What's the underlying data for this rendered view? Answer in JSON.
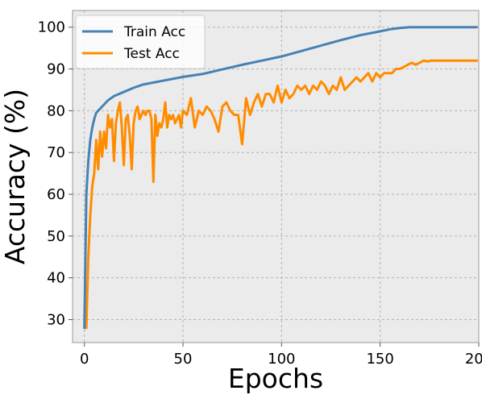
{
  "chart_data": {
    "type": "line",
    "title": "",
    "xlabel": "Epochs",
    "ylabel": "Accuracy (%)",
    "xlim": [
      -6,
      200
    ],
    "ylim": [
      24.5,
      104
    ],
    "xticks": [
      0,
      50,
      100,
      150,
      200
    ],
    "xtick_labels": [
      "0",
      "50",
      "100",
      "150",
      "200"
    ],
    "yticks": [
      30,
      40,
      50,
      60,
      70,
      80,
      90,
      100
    ],
    "ytick_labels": [
      "30",
      "40",
      "50",
      "60",
      "70",
      "80",
      "90",
      "100"
    ],
    "grid": true,
    "legend_position": "top-left",
    "series": [
      {
        "name": "Train Acc",
        "color": "#4682b4",
        "x": [
          0,
          1,
          2,
          3,
          4,
          5,
          6,
          7,
          8,
          10,
          12,
          15,
          20,
          25,
          30,
          40,
          50,
          60,
          70,
          80,
          90,
          100,
          110,
          120,
          130,
          140,
          150,
          155,
          160,
          165,
          170,
          180,
          190,
          199
        ],
        "values": [
          28,
          60,
          68,
          73,
          76,
          78,
          79.5,
          80,
          80.5,
          81.5,
          82.5,
          83.5,
          84.5,
          85.5,
          86.3,
          87.2,
          88.1,
          88.8,
          89.9,
          91,
          92,
          93,
          94.3,
          95.6,
          96.9,
          98.1,
          99,
          99.5,
          99.8,
          100,
          100,
          100,
          100,
          100
        ]
      },
      {
        "name": "Test Acc",
        "color": "#ff8c00",
        "x": [
          0,
          1,
          2,
          3,
          4,
          5,
          6,
          7,
          8,
          9,
          10,
          11,
          12,
          13,
          14,
          15,
          16,
          17,
          18,
          19,
          20,
          21,
          22,
          23,
          24,
          25,
          26,
          27,
          28,
          29,
          30,
          31,
          32,
          33,
          34,
          35,
          36,
          37,
          38,
          39,
          40,
          41,
          42,
          43,
          44,
          45,
          46,
          47,
          48,
          49,
          50,
          52,
          54,
          56,
          58,
          60,
          62,
          64,
          66,
          68,
          70,
          72,
          74,
          76,
          78,
          80,
          82,
          84,
          86,
          88,
          90,
          92,
          94,
          96,
          98,
          100,
          102,
          104,
          106,
          108,
          110,
          112,
          114,
          116,
          118,
          120,
          122,
          124,
          126,
          128,
          130,
          132,
          134,
          136,
          138,
          140,
          142,
          144,
          146,
          148,
          150,
          152,
          154,
          156,
          158,
          160,
          162,
          164,
          166,
          168,
          170,
          172,
          174,
          176,
          178,
          180,
          185,
          190,
          195,
          199
        ],
        "values": [
          31,
          28,
          45,
          55,
          62,
          65,
          73,
          66,
          75,
          69,
          75,
          71,
          79,
          76,
          78,
          68,
          77,
          80,
          82,
          76,
          67,
          78,
          79,
          74,
          66,
          77,
          80,
          81,
          78,
          79,
          80,
          79,
          80,
          80,
          78,
          63,
          79,
          74,
          77,
          76,
          78,
          82,
          76,
          79,
          78,
          79,
          77,
          78,
          79,
          76,
          80,
          79,
          83,
          76,
          80,
          79,
          81,
          80,
          78,
          75,
          81,
          82,
          80,
          79,
          79,
          72,
          83,
          79,
          82,
          84,
          81,
          84,
          84,
          82,
          86,
          82,
          85,
          83,
          84,
          86,
          85,
          86,
          84,
          86,
          85,
          87,
          86,
          84,
          86,
          85,
          88,
          85,
          86,
          87,
          88,
          87,
          88,
          89,
          87,
          89,
          88,
          89,
          89,
          89,
          90,
          90,
          90.5,
          91,
          91.5,
          91,
          91.5,
          92,
          91.8,
          92,
          92,
          92,
          92,
          92,
          92,
          92
        ]
      }
    ]
  }
}
